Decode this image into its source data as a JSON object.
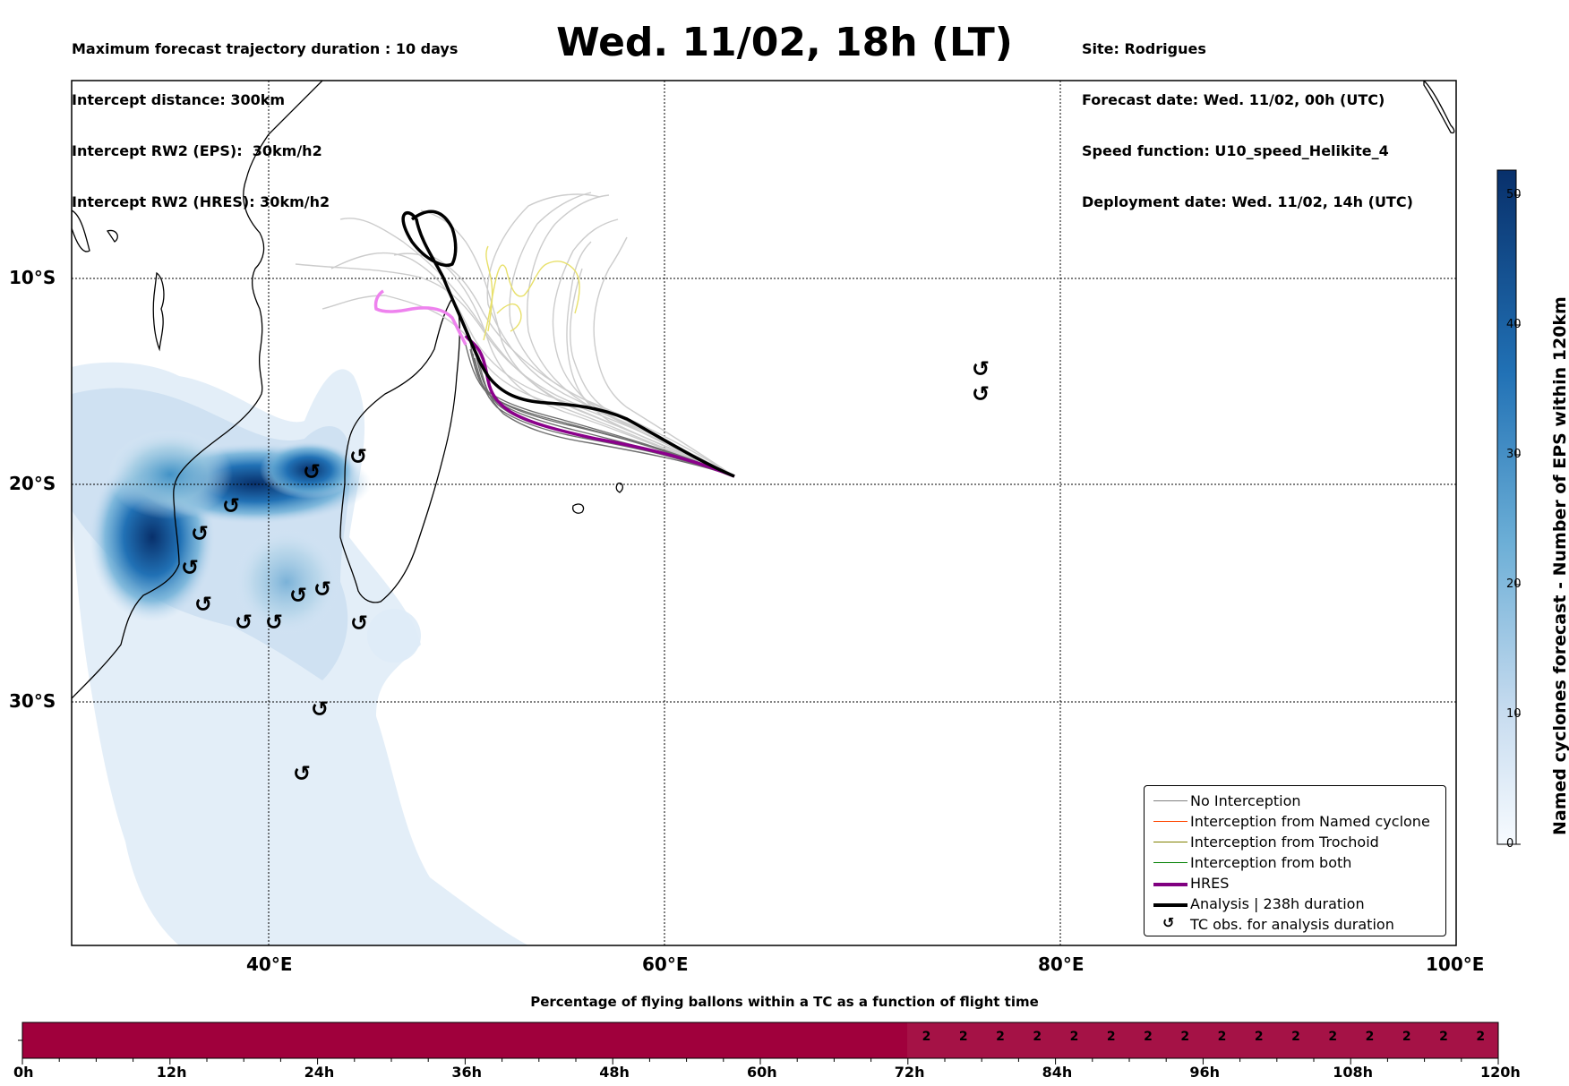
{
  "header": {
    "left_lines": [
      "Maximum forecast trajectory duration : 10 days",
      "Intercept distance: 300km",
      "Intercept RW2 (EPS):  30km/h2",
      "Intercept RW2 (HRES): 30km/h2"
    ],
    "title": "Wed. 11/02, 18h (LT)",
    "right_lines": [
      "Site: Rodrigues",
      "Forecast date: Wed. 11/02, 00h (UTC)",
      "Speed function: U10_speed_Helikite_4",
      "Deployment date: Wed. 11/02, 14h (UTC)"
    ]
  },
  "map": {
    "lat_labels": [
      "10°S",
      "20°S",
      "30°S"
    ],
    "lon_labels": [
      "40°E",
      "60°E",
      "80°E",
      "100°E"
    ],
    "colors": {
      "density_dark": "#08306b",
      "density_light": "#deebf7",
      "eps_track": "#cccccc",
      "eps_track_dark": "#666666",
      "hres": "#8b008b",
      "hres_past": "#ee82ee",
      "analysis": "#000000",
      "trochoid": "#e8e06a"
    }
  },
  "legend": {
    "items": [
      {
        "label": "No Interception",
        "color": "#808080",
        "width": 1.5
      },
      {
        "label": "Interception from Named cyclone",
        "color": "#ff4500",
        "width": 1.5
      },
      {
        "label": "Interception from Trochoid",
        "color": "#808000",
        "width": 1.5
      },
      {
        "label": "Interception from both",
        "color": "#008000",
        "width": 1.5
      },
      {
        "label": "HRES",
        "color": "#800080",
        "width": 4
      },
      {
        "label": "Analysis | 238h duration",
        "color": "#000000",
        "width": 4
      },
      {
        "label": "TC obs. for analysis duration",
        "symbol": "↺"
      }
    ]
  },
  "colorbar": {
    "label": "Named cyclones forecast - Number of EPS within 120km",
    "ticks": [
      "0",
      "10",
      "20",
      "30",
      "40",
      "50"
    ]
  },
  "strip": {
    "title": "Percentage of flying ballons within a TC as a function of flight time",
    "tick_labels": [
      "0h",
      "12h",
      "24h",
      "36h",
      "48h",
      "60h",
      "72h",
      "84h",
      "96h",
      "108h",
      "120h"
    ],
    "color_zero": "#a0003c",
    "color_low": "#a51246",
    "cell_values": [
      "2",
      "2",
      "2",
      "2",
      "2",
      "2",
      "2",
      "2",
      "2",
      "2",
      "2",
      "2",
      "2",
      "2",
      "2",
      "2"
    ]
  }
}
